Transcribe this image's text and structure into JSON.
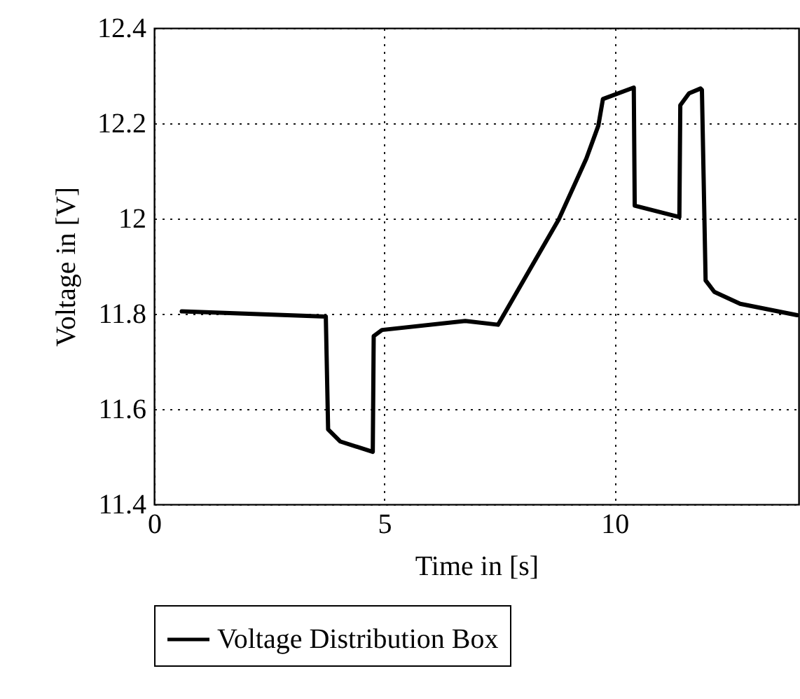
{
  "chart_data": {
    "type": "line",
    "xlabel": "Time in [s]",
    "ylabel": "Voltage in [V]",
    "xlim": [
      0,
      14
    ],
    "xticks": [
      0,
      5,
      10
    ],
    "ylim": [
      11.4,
      12.4
    ],
    "yticks": [
      11.4,
      11.6,
      11.8,
      12,
      12.2,
      12.4
    ],
    "grid": true,
    "legend": "bottom",
    "line_style": "solid",
    "series": [
      {
        "name": "Voltage Distribution Box",
        "color": "#000000",
        "x": [
          0.6,
          3.73,
          3.78,
          4.04,
          4.75,
          4.77,
          4.95,
          6.76,
          7.47,
          8.79,
          9.39,
          9.65,
          9.75,
          10.42,
          10.44,
          11.41,
          11.43,
          11.62,
          11.87,
          11.9,
          11.98,
          12.17,
          12.73,
          13.97
        ],
        "values": [
          11.805,
          11.794,
          11.557,
          11.532,
          11.51,
          11.753,
          11.766,
          11.785,
          11.777,
          11.998,
          12.126,
          12.195,
          12.251,
          12.275,
          12.027,
          12.003,
          12.238,
          12.263,
          12.273,
          12.27,
          11.87,
          11.846,
          11.821,
          11.797
        ]
      }
    ]
  }
}
